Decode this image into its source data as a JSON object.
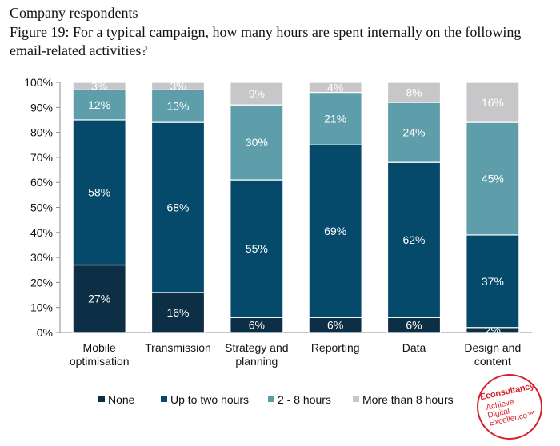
{
  "header": {
    "subtitle": "Company respondents",
    "title": "Figure 19: For a typical campaign, how many hours are spent internally on the following email-related activities?"
  },
  "chart_data": {
    "type": "bar",
    "stacked": true,
    "categories": [
      [
        "Mobile",
        "optimisation"
      ],
      [
        "Transmission"
      ],
      [
        "Strategy and",
        "planning"
      ],
      [
        "Reporting"
      ],
      [
        "Data"
      ],
      [
        "Design and",
        "content"
      ]
    ],
    "series": [
      {
        "name": "None",
        "color": "#0d2f45",
        "values": [
          27,
          16,
          6,
          6,
          6,
          2
        ]
      },
      {
        "name": "Up to two hours",
        "color": "#064a6b",
        "values": [
          58,
          68,
          55,
          69,
          62,
          37
        ]
      },
      {
        "name": "2 -  8 hours",
        "color": "#5e9eaa",
        "values": [
          12,
          13,
          30,
          21,
          24,
          45
        ]
      },
      {
        "name": "More than 8 hours",
        "color": "#c7c7c9",
        "values": [
          3,
          3,
          9,
          4,
          8,
          16
        ]
      }
    ],
    "yticks": [
      "0%",
      "10%",
      "20%",
      "30%",
      "40%",
      "50%",
      "60%",
      "70%",
      "80%",
      "90%",
      "100%"
    ],
    "ylim": [
      0,
      100
    ],
    "label_suffix": "%",
    "legend_position": "bottom",
    "grid": false
  },
  "logo": {
    "brand": "Econsultancy",
    "tagline": "Achieve Digital Excellence™"
  }
}
